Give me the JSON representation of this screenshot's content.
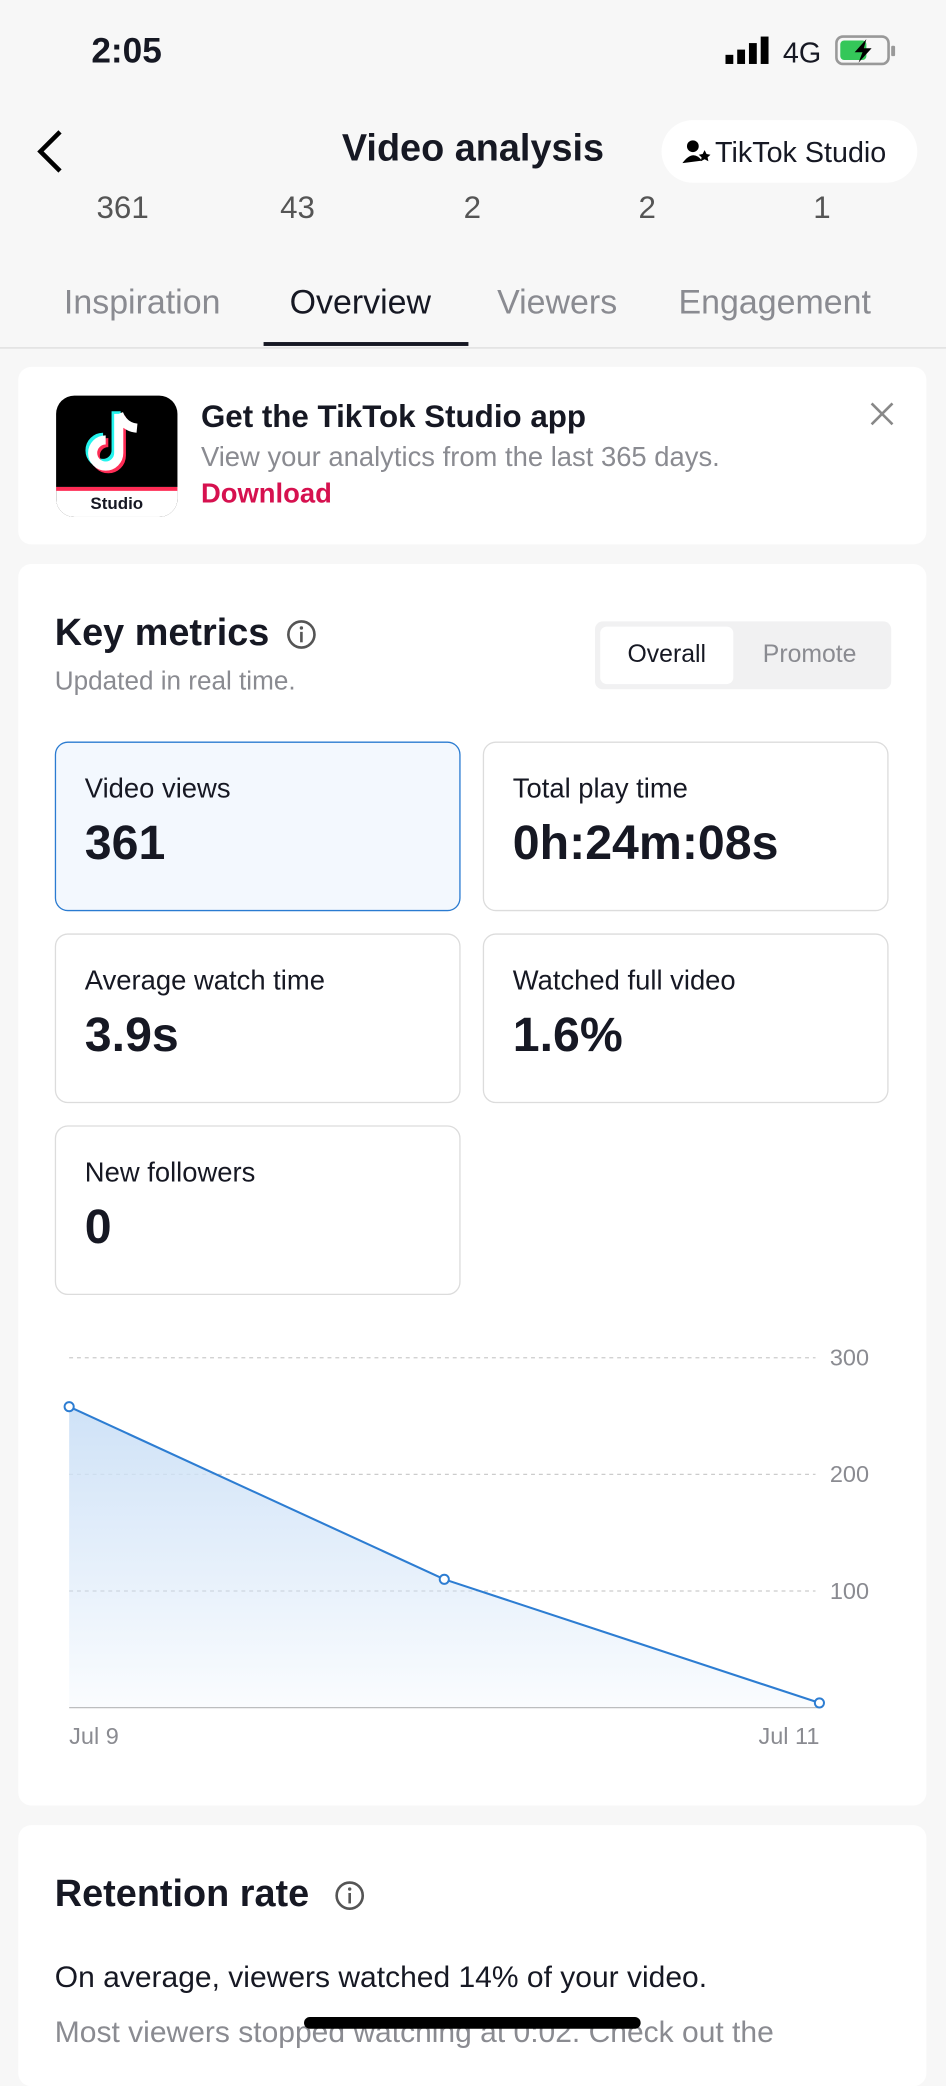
{
  "status_bar": {
    "time": "2:05",
    "network": "4G"
  },
  "header": {
    "title": "Video analysis",
    "button": "TikTok Studio"
  },
  "stats_row": [
    "361",
    "43",
    "2",
    "2",
    "1"
  ],
  "tabs": [
    "Inspiration",
    "Overview",
    "Viewers",
    "Engagement"
  ],
  "banner": {
    "icon_label": "Studio",
    "title": "Get the TikTok Studio app",
    "subtitle": "View your analytics from the last 365 days.",
    "link": "Download"
  },
  "key_metrics": {
    "title": "Key metrics",
    "subtitle": "Updated in real time.",
    "toggle": [
      "Overall",
      "Promote"
    ],
    "cards": [
      {
        "label": "Video views",
        "value": "361"
      },
      {
        "label": "Total play time",
        "value": "0h:24m:08s"
      },
      {
        "label": "Average watch time",
        "value": "3.9s"
      },
      {
        "label": "Watched full video",
        "value": "1.6%"
      },
      {
        "label": "New followers",
        "value": "0"
      }
    ]
  },
  "chart_data": {
    "type": "line",
    "categories": [
      "Jul 9",
      null,
      "Jul 11"
    ],
    "values": [
      258,
      110,
      4
    ],
    "color": "#2d7dd2",
    "ylim": [
      0,
      300
    ],
    "yticks": [
      100,
      200,
      300
    ],
    "grid": true
  },
  "retention": {
    "title": "Retention rate",
    "text": "On average, viewers watched 14% of your video.",
    "text2": "Most viewers stopped watching at 0:02. Check out the"
  }
}
